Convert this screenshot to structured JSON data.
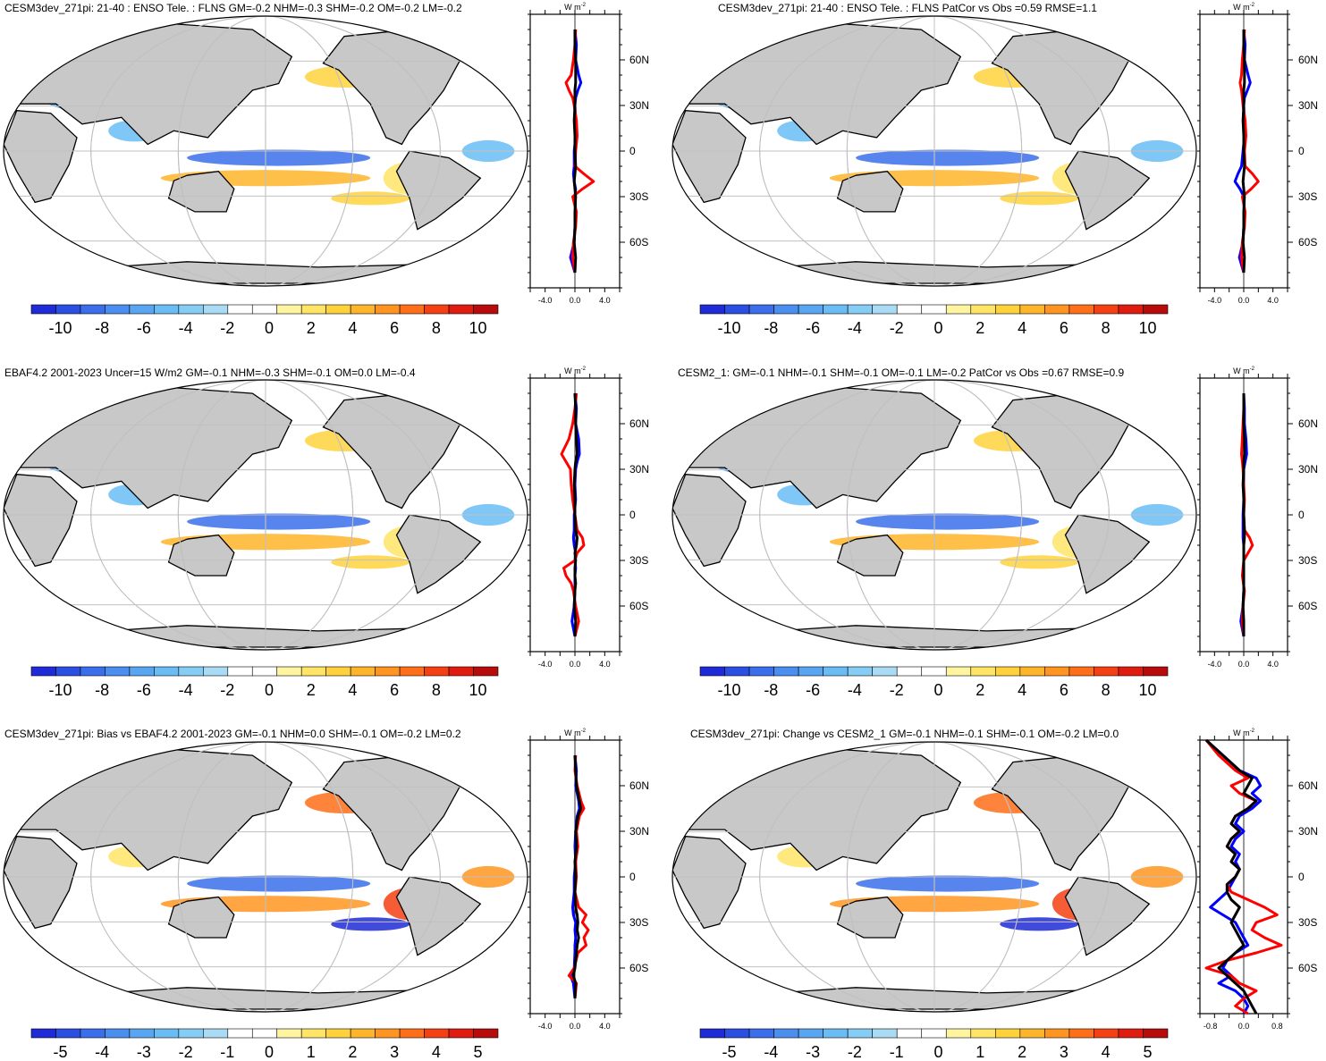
{
  "colors": {
    "land": "#c8c8c8",
    "ocean": "#ffffff",
    "grid": "#c0c0c0",
    "coast": "#000000",
    "line_red": "#ff0000",
    "line_blue": "#0000ff",
    "line_black": "#000000"
  },
  "palette": [
    "#1f2bd6",
    "#2b4fe3",
    "#3a6eea",
    "#4a8ef0",
    "#58a6f2",
    "#69bdf4",
    "#86cdf5",
    "#a9dcf4",
    "#ffffff",
    "#ffffff",
    "#fff5a0",
    "#ffe466",
    "#ffd23c",
    "#ffb52a",
    "#ff9520",
    "#ff6f19",
    "#f54013",
    "#e01b10",
    "#b80c0c"
  ],
  "panels": [
    {
      "title": "CESM3dev_271pi: 21-40 : ENSO Tele. : FLNS GM=-0.2 NHM=-0.3 SHM=-0.2 OM=-0.2 LM=-0.2",
      "colorbar_labels": [
        "-10",
        "-8",
        "-6",
        "-4",
        "-2",
        "0",
        "2",
        "4",
        "6",
        "8",
        "10"
      ],
      "zonal_axis": {
        "xticks": [
          "-4.0",
          "0.0",
          "4.0"
        ],
        "xlim": [
          -6,
          6
        ],
        "units_base": "W m",
        "units_exp": "-2",
        "ylabels": [
          "60N",
          "30N",
          "0",
          "30S",
          "60S"
        ]
      },
      "chart_data": {
        "type": "line",
        "lat": [
          80,
          70,
          60,
          50,
          45,
          40,
          35,
          30,
          20,
          10,
          0,
          -10,
          -15,
          -20,
          -25,
          -30,
          -40,
          -50,
          -60,
          -70,
          -80
        ],
        "series": [
          {
            "name": "model",
            "color": "red",
            "values": [
              0.1,
              0.0,
              -0.2,
              -0.5,
              -1.2,
              -0.8,
              -0.3,
              -0.1,
              0.2,
              0.3,
              0.1,
              0.0,
              1.2,
              2.5,
              1.0,
              -0.3,
              0.2,
              0.1,
              -0.2,
              -0.3,
              0.0
            ]
          },
          {
            "name": "obs",
            "color": "blue",
            "values": [
              0.0,
              0.2,
              0.1,
              0.5,
              0.8,
              0.4,
              0.1,
              0.0,
              0.1,
              0.1,
              -0.1,
              -0.1,
              -0.2,
              -0.1,
              0.1,
              0.0,
              0.1,
              0.0,
              -0.1,
              -0.6,
              0.0
            ]
          },
          {
            "name": "ref",
            "color": "black",
            "values": [
              0.0,
              0.0,
              0.1,
              0.1,
              0.1,
              0.0,
              0.0,
              0.0,
              -0.1,
              0.0,
              0.0,
              0.1,
              0.0,
              -0.1,
              0.0,
              0.1,
              0.0,
              0.0,
              -0.1,
              0.1,
              0.0
            ]
          }
        ]
      }
    },
    {
      "title": "CESM3dev_271pi: 21-40 : ENSO Tele. : FLNS PatCor vs Obs =0.59 RMSE=1.1",
      "colorbar_labels": [
        "-10",
        "-8",
        "-6",
        "-4",
        "-2",
        "0",
        "2",
        "4",
        "6",
        "8",
        "10"
      ],
      "zonal_axis": {
        "xticks": [
          "-4.0",
          "0.0",
          "4.0"
        ],
        "xlim": [
          -6,
          6
        ],
        "units_base": "W m",
        "units_exp": "-2",
        "ylabels": [
          "60N",
          "30N",
          "0",
          "30S",
          "60S"
        ]
      },
      "chart_data": {
        "type": "line",
        "lat": [
          80,
          70,
          60,
          50,
          45,
          40,
          35,
          30,
          20,
          10,
          0,
          -10,
          -15,
          -20,
          -25,
          -30,
          -40,
          -50,
          -60,
          -70,
          -80
        ],
        "series": [
          {
            "name": "model",
            "color": "red",
            "values": [
              0.1,
              0.0,
              -0.2,
              -0.3,
              -0.5,
              -0.3,
              -0.2,
              -0.1,
              0.2,
              0.3,
              0.1,
              0.2,
              1.2,
              2.0,
              1.0,
              -0.2,
              0.2,
              0.1,
              -0.2,
              -0.3,
              0.0
            ]
          },
          {
            "name": "obs",
            "color": "blue",
            "values": [
              0.0,
              0.2,
              0.1,
              0.6,
              0.9,
              0.5,
              0.1,
              0.0,
              0.1,
              0.1,
              -0.1,
              -0.3,
              -0.8,
              -1.2,
              -0.5,
              0.0,
              0.1,
              0.0,
              -0.1,
              -0.6,
              0.0
            ]
          },
          {
            "name": "ref",
            "color": "black",
            "values": [
              0.0,
              0.0,
              0.1,
              0.1,
              0.1,
              0.0,
              0.0,
              0.0,
              -0.1,
              0.0,
              0.0,
              0.1,
              0.0,
              -0.1,
              0.0,
              0.1,
              0.0,
              0.0,
              -0.1,
              0.1,
              0.0
            ]
          }
        ]
      }
    },
    {
      "title": "EBAF4.2 2001-2023 Uncer=15 W/m2 GM=-0.1 NHM=-0.3 SHM=-0.1 OM=0.0 LM=-0.4",
      "colorbar_labels": [
        "-10",
        "-8",
        "-6",
        "-4",
        "-2",
        "0",
        "2",
        "4",
        "6",
        "8",
        "10"
      ],
      "zonal_axis": {
        "xticks": [
          "-4.0",
          "0.0",
          "4.0"
        ],
        "xlim": [
          -6,
          6
        ],
        "units_base": "W m",
        "units_exp": "-2",
        "ylabels": [
          "60N",
          "30N",
          "0",
          "30S",
          "60S"
        ]
      },
      "chart_data": {
        "type": "line",
        "lat": [
          80,
          70,
          60,
          50,
          40,
          35,
          30,
          20,
          10,
          0,
          -10,
          -15,
          -20,
          -25,
          -30,
          -35,
          -40,
          -45,
          -50,
          -60,
          -70,
          -80
        ],
        "series": [
          {
            "name": "model",
            "color": "red",
            "values": [
              0.2,
              0.0,
              -0.3,
              -0.8,
              -1.8,
              -1.2,
              -0.6,
              -0.5,
              -0.3,
              0.0,
              0.3,
              1.0,
              1.2,
              0.3,
              0.0,
              -1.5,
              -1.2,
              -0.5,
              -0.2,
              0.1,
              0.5,
              0.0
            ]
          },
          {
            "name": "obs",
            "color": "blue",
            "values": [
              0.0,
              0.2,
              0.1,
              0.5,
              0.6,
              0.3,
              0.1,
              0.0,
              0.1,
              -0.1,
              -0.1,
              -0.2,
              -0.1,
              0.1,
              0.0,
              0.1,
              0.0,
              0.0,
              0.0,
              -0.1,
              -0.4,
              0.0
            ]
          },
          {
            "name": "ref",
            "color": "black",
            "values": [
              0.0,
              0.1,
              0.1,
              0.2,
              0.3,
              0.1,
              0.0,
              -0.1,
              0.0,
              0.0,
              0.1,
              0.3,
              0.2,
              0.0,
              0.1,
              0.0,
              0.0,
              0.1,
              0.0,
              -0.1,
              0.1,
              0.0
            ]
          }
        ]
      }
    },
    {
      "title": "CESM2_1: GM=-0.1 NHM=-0.1 SHM=-0.1 OM=-0.1 LM=-0.2 PatCor vs Obs =0.67 RMSE=0.9",
      "colorbar_labels": [
        "-10",
        "-8",
        "-6",
        "-4",
        "-2",
        "0",
        "2",
        "4",
        "6",
        "8",
        "10"
      ],
      "zonal_axis": {
        "xticks": [
          "-4.0",
          "0.0",
          "4.0"
        ],
        "xlim": [
          -6,
          6
        ],
        "units_base": "W m",
        "units_exp": "-2",
        "ylabels": [
          "60N",
          "30N",
          "0",
          "30S",
          "60S"
        ]
      },
      "chart_data": {
        "type": "line",
        "lat": [
          80,
          70,
          60,
          50,
          40,
          35,
          30,
          20,
          10,
          0,
          -10,
          -15,
          -20,
          -25,
          -30,
          -40,
          -50,
          -60,
          -70,
          -80
        ],
        "series": [
          {
            "name": "model",
            "color": "red",
            "values": [
              0.0,
              0.0,
              -0.1,
              -0.2,
              -0.3,
              -0.2,
              -0.1,
              0.0,
              0.1,
              0.0,
              0.1,
              0.8,
              1.2,
              0.6,
              0.0,
              -0.2,
              0.1,
              -0.1,
              -0.2,
              0.0
            ]
          },
          {
            "name": "obs",
            "color": "blue",
            "values": [
              0.0,
              0.1,
              0.1,
              0.3,
              0.4,
              0.2,
              0.0,
              0.0,
              0.0,
              -0.1,
              -0.1,
              -0.1,
              0.0,
              0.0,
              0.0,
              0.0,
              0.0,
              -0.1,
              -0.4,
              0.0
            ]
          },
          {
            "name": "ref",
            "color": "black",
            "values": [
              0.0,
              0.0,
              0.0,
              0.1,
              0.1,
              0.0,
              0.0,
              -0.1,
              0.0,
              0.0,
              0.1,
              0.1,
              0.0,
              0.0,
              0.0,
              0.0,
              0.0,
              -0.1,
              0.0,
              0.0
            ]
          }
        ]
      }
    },
    {
      "title": "CESM3dev_271pi: Bias vs EBAF4.2 2001-2023 GM=-0.1 NHM=0.0 SHM=-0.1 OM=-0.2 LM=0.2",
      "colorbar_labels": [
        "-5",
        "-4",
        "-3",
        "-2",
        "-1",
        "0",
        "1",
        "2",
        "3",
        "4",
        "5"
      ],
      "zonal_axis": {
        "xticks": [
          "-4.0",
          "0.0",
          "4.0"
        ],
        "xlim": [
          -6,
          6
        ],
        "units_base": "W m",
        "units_exp": "-2",
        "ylabels": [
          "60N",
          "30N",
          "0",
          "30S",
          "60S"
        ]
      },
      "chart_data": {
        "type": "line",
        "lat": [
          80,
          70,
          60,
          50,
          45,
          40,
          30,
          20,
          10,
          0,
          -10,
          -20,
          -25,
          -30,
          -35,
          -40,
          -45,
          -50,
          -60,
          -65,
          -70,
          -80
        ],
        "series": [
          {
            "name": "model",
            "color": "red",
            "values": [
              0.1,
              0.0,
              0.3,
              0.8,
              1.2,
              0.6,
              0.2,
              0.4,
              0.1,
              0.2,
              0.0,
              0.5,
              1.5,
              1.0,
              1.8,
              1.2,
              1.5,
              0.4,
              -0.1,
              -0.8,
              0.2,
              0.0
            ]
          },
          {
            "name": "obs",
            "color": "blue",
            "values": [
              0.0,
              0.2,
              0.1,
              0.5,
              0.6,
              0.3,
              0.1,
              0.0,
              0.1,
              -0.1,
              -0.1,
              -0.3,
              -0.2,
              0.1,
              0.0,
              0.1,
              0.0,
              0.0,
              -0.1,
              -0.6,
              -0.2,
              0.0
            ]
          },
          {
            "name": "ref",
            "color": "black",
            "values": [
              0.0,
              0.1,
              0.2,
              0.6,
              0.8,
              0.4,
              0.1,
              0.2,
              0.0,
              0.1,
              0.0,
              0.1,
              0.3,
              0.4,
              0.3,
              0.5,
              0.3,
              0.2,
              0.0,
              -0.2,
              0.1,
              0.0
            ]
          }
        ]
      }
    },
    {
      "title": "CESM3dev_271pi: Change vs CESM2_1 GM=-0.1 NHM=-0.1 SHM=-0.1 OM=-0.2 LM=0.0",
      "colorbar_labels": [
        "-5",
        "-4",
        "-3",
        "-2",
        "-1",
        "0",
        "1",
        "2",
        "3",
        "4",
        "5"
      ],
      "zonal_axis": {
        "xticks": [
          "-0.8",
          "0.0",
          "0.8"
        ],
        "xlim": [
          -1.05,
          1.05
        ],
        "units_base": "W m",
        "units_exp": "-2",
        "ylabels": [
          "60N",
          "30N",
          "0",
          "30S",
          "60S"
        ]
      },
      "chart_data": {
        "type": "line",
        "lat": [
          90,
          80,
          70,
          65,
          60,
          55,
          50,
          45,
          40,
          35,
          30,
          25,
          20,
          15,
          10,
          5,
          0,
          -5,
          -10,
          -15,
          -20,
          -25,
          -30,
          -35,
          -40,
          -45,
          -50,
          -55,
          -60,
          -65,
          -70,
          -75,
          -80,
          -85,
          -90
        ],
        "series": [
          {
            "name": "model",
            "color": "red",
            "values": [
              -0.9,
              -0.6,
              -0.2,
              0.1,
              -0.3,
              -0.1,
              0.3,
              0.1,
              -0.2,
              -0.3,
              -0.1,
              -0.3,
              -0.4,
              -0.2,
              -0.3,
              -0.1,
              -0.2,
              -0.4,
              -0.3,
              0.1,
              0.5,
              0.8,
              0.3,
              0.2,
              0.5,
              0.9,
              0.3,
              -0.4,
              -0.9,
              -0.3,
              -0.1,
              0.3,
              0.0,
              -0.2,
              0.1
            ]
          },
          {
            "name": "obs",
            "color": "blue",
            "values": [
              -0.9,
              -0.5,
              -0.1,
              0.3,
              0.4,
              0.2,
              0.4,
              0.2,
              -0.1,
              -0.2,
              0.0,
              -0.2,
              -0.3,
              -0.1,
              -0.2,
              -0.1,
              -0.2,
              -0.3,
              -0.4,
              -0.6,
              -0.8,
              -0.5,
              -0.2,
              -0.1,
              0.0,
              0.1,
              -0.2,
              -0.4,
              -0.5,
              -0.3,
              -0.6,
              -0.2,
              0.0,
              0.1,
              0.0
            ]
          },
          {
            "name": "ref",
            "color": "black",
            "values": [
              -0.9,
              -0.5,
              -0.1,
              0.2,
              0.1,
              0.0,
              0.3,
              0.1,
              -0.2,
              -0.3,
              -0.1,
              -0.3,
              -0.4,
              -0.2,
              -0.3,
              -0.1,
              -0.2,
              -0.4,
              -0.4,
              -0.3,
              -0.1,
              -0.2,
              -0.3,
              -0.2,
              -0.1,
              0.0,
              -0.2,
              -0.4,
              -0.6,
              -0.4,
              -0.2,
              0.0,
              0.1,
              0.2,
              0.3
            ]
          }
        ]
      }
    }
  ]
}
